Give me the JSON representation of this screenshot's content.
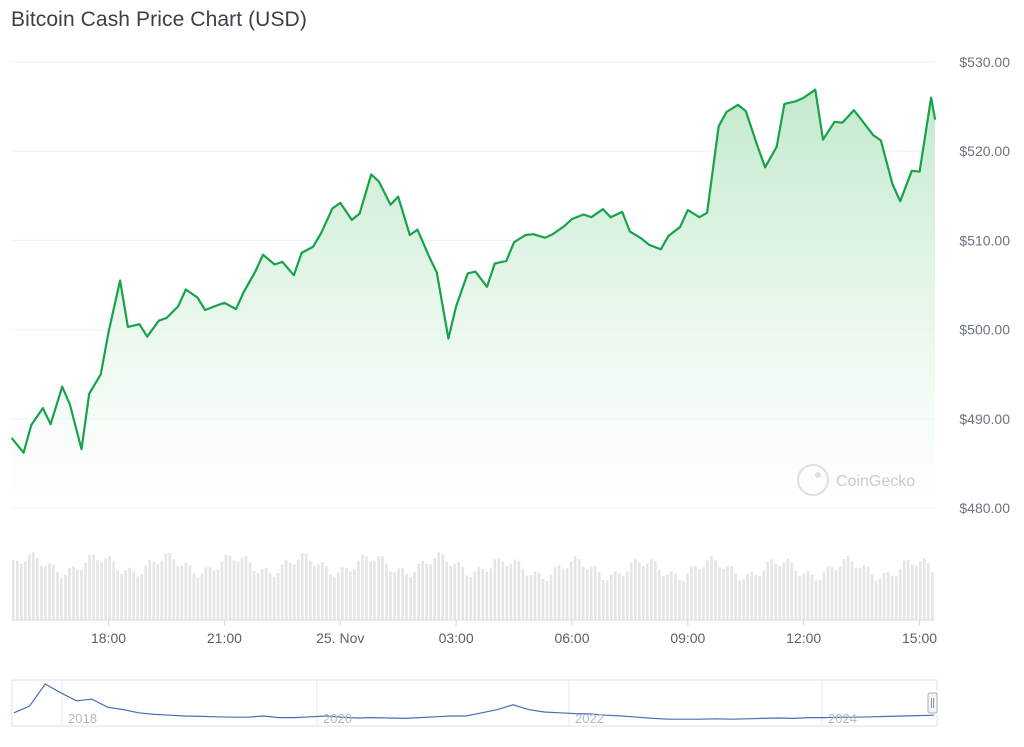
{
  "title": "Bitcoin Cash Price Chart (USD)",
  "watermark": "CoinGecko",
  "colors": {
    "line": "#16a34a",
    "area_top": "#bfe8c9",
    "grid": "#eef0f3",
    "volume": "#e3e5e9",
    "navigator_line": "#4a6fb5"
  },
  "chart_data": {
    "type": "area",
    "title": "Bitcoin Cash Price Chart (USD)",
    "xlabel": "",
    "ylabel": "",
    "ylim": [
      480,
      530
    ],
    "y_ticks": [
      "$480.00",
      "$490.00",
      "$500.00",
      "$510.00",
      "$520.00",
      "$530.00"
    ],
    "x_ticks": [
      "18:00",
      "21:00",
      "25. Nov",
      "03:00",
      "06:00",
      "09:00",
      "12:00",
      "15:00"
    ],
    "x_range_hours": [
      15.5,
      39.4
    ],
    "grid": true,
    "series": [
      {
        "x": [
          15.5,
          15.8,
          16.0,
          16.3,
          16.5,
          16.8,
          17.0,
          17.3,
          17.5,
          17.8,
          18.0,
          18.3,
          18.5,
          18.8,
          19.0,
          19.3,
          19.5,
          19.8,
          20.0,
          20.3,
          20.5,
          20.8,
          21.0,
          21.3,
          21.5,
          21.8,
          22.0,
          22.3,
          22.5,
          22.8,
          23.0,
          23.3,
          23.5,
          23.8,
          24.0,
          24.3,
          24.5,
          24.8,
          25.0,
          25.3,
          25.5,
          25.8,
          26.0,
          26.3,
          26.5,
          26.8,
          27.0,
          27.3,
          27.5,
          27.8,
          28.0,
          28.3,
          28.5,
          28.8,
          29.0,
          29.3,
          29.5,
          29.8,
          30.0,
          30.3,
          30.5,
          30.8,
          31.0,
          31.3,
          31.5,
          31.8,
          32.0,
          32.3,
          32.5,
          32.8,
          33.0,
          33.3,
          33.5,
          33.8,
          34.0,
          34.3,
          34.5,
          34.8,
          35.0,
          35.3,
          35.5,
          35.8,
          36.0,
          36.3,
          36.5,
          36.8,
          37.0,
          37.3,
          37.5,
          37.8,
          38.0,
          38.3,
          38.5,
          38.8,
          39.0,
          39.3,
          39.4
        ],
        "values": [
          487.8,
          486.2,
          489.3,
          491.2,
          489.4,
          493.6,
          491.6,
          486.6,
          492.8,
          495.0,
          499.7,
          505.5,
          500.3,
          500.6,
          499.2,
          501.0,
          501.3,
          502.6,
          504.5,
          503.6,
          502.2,
          502.7,
          503.0,
          502.3,
          504.2,
          506.5,
          508.4,
          507.3,
          507.6,
          506.1,
          508.6,
          509.3,
          510.8,
          513.6,
          514.2,
          512.3,
          513.0,
          517.4,
          516.6,
          514.0,
          514.9,
          510.6,
          511.2,
          508.2,
          506.4,
          499.0,
          502.6,
          506.3,
          506.5,
          504.8,
          507.4,
          507.7,
          509.8,
          510.6,
          510.7,
          510.3,
          510.7,
          511.6,
          512.4,
          512.9,
          512.6,
          513.5,
          512.6,
          513.2,
          511.0,
          510.2,
          509.5,
          509.0,
          510.5,
          511.5,
          513.4,
          512.6,
          513.1,
          522.8,
          524.4,
          525.2,
          524.5,
          520.6,
          518.2,
          520.5,
          525.3,
          525.6,
          526.0,
          526.9,
          521.3,
          523.3,
          523.2,
          524.6,
          523.5,
          521.8,
          521.2,
          516.3,
          514.4,
          517.8,
          517.7,
          526.0,
          523.6
        ]
      }
    ]
  },
  "navigator": {
    "labels": [
      "2018",
      "2020",
      "2022",
      "2024"
    ],
    "values": [
      0.28,
      0.45,
      1.0,
      0.78,
      0.58,
      0.62,
      0.42,
      0.36,
      0.28,
      0.24,
      0.22,
      0.2,
      0.19,
      0.18,
      0.17,
      0.17,
      0.2,
      0.16,
      0.16,
      0.18,
      0.2,
      0.17,
      0.15,
      0.16,
      0.15,
      0.14,
      0.16,
      0.18,
      0.2,
      0.2,
      0.28,
      0.36,
      0.48,
      0.36,
      0.3,
      0.28,
      0.26,
      0.25,
      0.22,
      0.2,
      0.17,
      0.14,
      0.12,
      0.12,
      0.12,
      0.13,
      0.12,
      0.13,
      0.14,
      0.15,
      0.14,
      0.16,
      0.16,
      0.17,
      0.17,
      0.18,
      0.19,
      0.2,
      0.21,
      0.22
    ]
  }
}
